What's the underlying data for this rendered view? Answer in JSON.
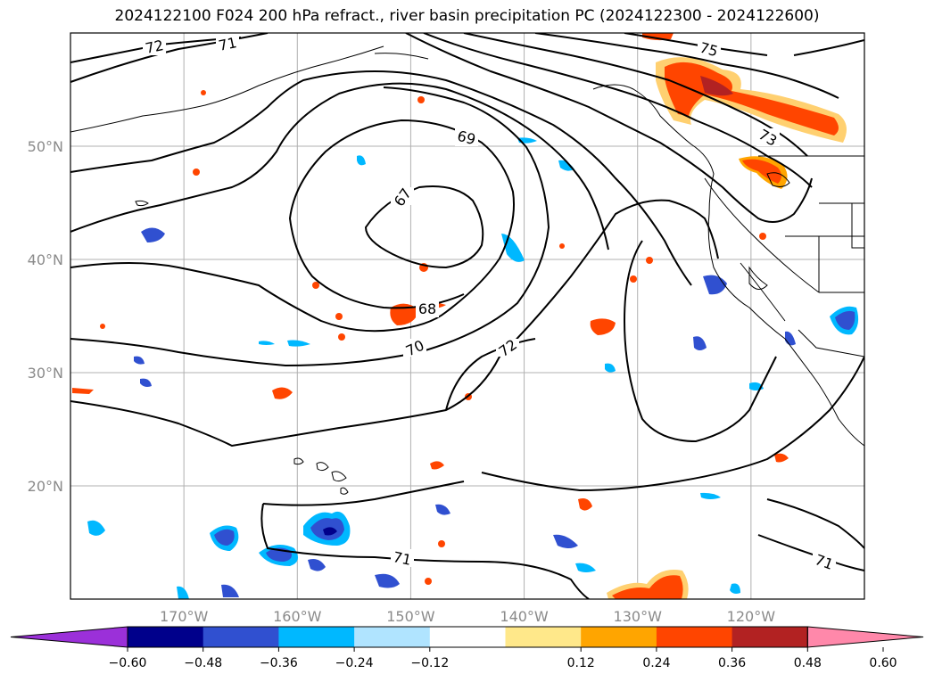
{
  "title": "2024122100 F024 200 hPa refract., river basin precipitation PC (2024122300 - 2024122600)",
  "map": {
    "lon_range": [
      -180,
      -110
    ],
    "lat_range": [
      10,
      60
    ],
    "lat_ticks": [
      {
        "value": 50,
        "label": "50°N"
      },
      {
        "value": 40,
        "label": "40°N"
      },
      {
        "value": 30,
        "label": "30°N"
      },
      {
        "value": 20,
        "label": "20°N"
      }
    ],
    "lon_ticks": [
      {
        "value": -170,
        "label": "170°W"
      },
      {
        "value": -160,
        "label": "160°W"
      },
      {
        "value": -150,
        "label": "150°W"
      },
      {
        "value": -140,
        "label": "140°W"
      },
      {
        "value": -130,
        "label": "130°W"
      },
      {
        "value": -120,
        "label": "120°W"
      }
    ],
    "gridlines": true,
    "contour_labels": [
      "72",
      "71",
      "75",
      "69",
      "73",
      "67",
      "68",
      "70",
      "72",
      "71",
      "71"
    ]
  },
  "colorbar": {
    "colors": [
      "#9b30d9",
      "#00008b",
      "#3050d0",
      "#00b8ff",
      "#b0e4ff",
      "#ffffff",
      "#ffe88a",
      "#ffa500",
      "#ff4500",
      "#b22222",
      "#ff88aa"
    ],
    "ticks": [
      "−0.60",
      "−0.48",
      "−0.36",
      "−0.24",
      "−0.12",
      "0.12",
      "0.24",
      "0.36",
      "0.48",
      "0.60"
    ]
  }
}
